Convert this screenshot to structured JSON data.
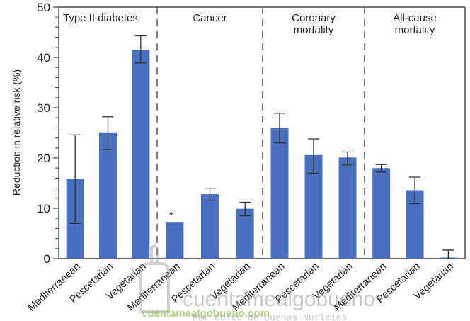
{
  "chart_data": {
    "type": "bar",
    "title": "",
    "xlabel": "",
    "ylabel": "Reduction in relative risk (%)",
    "ylim": [
      0,
      50
    ],
    "yticks": [
      0,
      10,
      20,
      30,
      40,
      50
    ],
    "yminor_step": 2,
    "grid": false,
    "bar_color": "#4a6fbf",
    "groups": [
      {
        "name": "Type II diabetes",
        "label_lines": [
          "Type II diabetes"
        ],
        "bars": [
          {
            "category": "Mediterranean",
            "value": 15.9,
            "err_low": 7.0,
            "err_high": 24.6
          },
          {
            "category": "Pescetarian",
            "value": 25.1,
            "err_low": 21.7,
            "err_high": 28.2
          },
          {
            "category": "Vegetarian",
            "value": 41.5,
            "err_low": 38.9,
            "err_high": 44.3
          }
        ]
      },
      {
        "name": "Cancer",
        "label_lines": [
          "Cancer"
        ],
        "bars": [
          {
            "category": "Mediterranean",
            "value": 7.3,
            "err_low": null,
            "err_high": null,
            "annotation": "*"
          },
          {
            "category": "Pescetarian",
            "value": 12.8,
            "err_low": 11.5,
            "err_high": 14.0
          },
          {
            "category": "Vegetarian",
            "value": 9.9,
            "err_low": 8.5,
            "err_high": 11.2
          }
        ]
      },
      {
        "name": "Coronary mortality",
        "label_lines": [
          "Coronary",
          "mortality"
        ],
        "bars": [
          {
            "category": "Mediterranean",
            "value": 26.0,
            "err_low": 23.0,
            "err_high": 28.9
          },
          {
            "category": "Pescetarian",
            "value": 20.6,
            "err_low": 17.0,
            "err_high": 23.8
          },
          {
            "category": "Vegetarian",
            "value": 20.1,
            "err_low": 18.6,
            "err_high": 21.2
          }
        ]
      },
      {
        "name": "All-cause mortality",
        "label_lines": [
          "All-cause",
          "mortality"
        ],
        "bars": [
          {
            "category": "Mediterranean",
            "value": 18.0,
            "err_low": 17.2,
            "err_high": 18.7
          },
          {
            "category": "Pescetarian",
            "value": 13.6,
            "err_low": 10.9,
            "err_high": 16.2
          },
          {
            "category": "Vegetarian",
            "value": 0.2,
            "err_low": 0.0,
            "err_high": 1.7
          }
        ]
      }
    ]
  },
  "watermark": {
    "line1": "cuentamealgobueno",
    "line2": "cuentamealgobueno.com",
    "line3": "Periódico de Buenas Noticias"
  }
}
